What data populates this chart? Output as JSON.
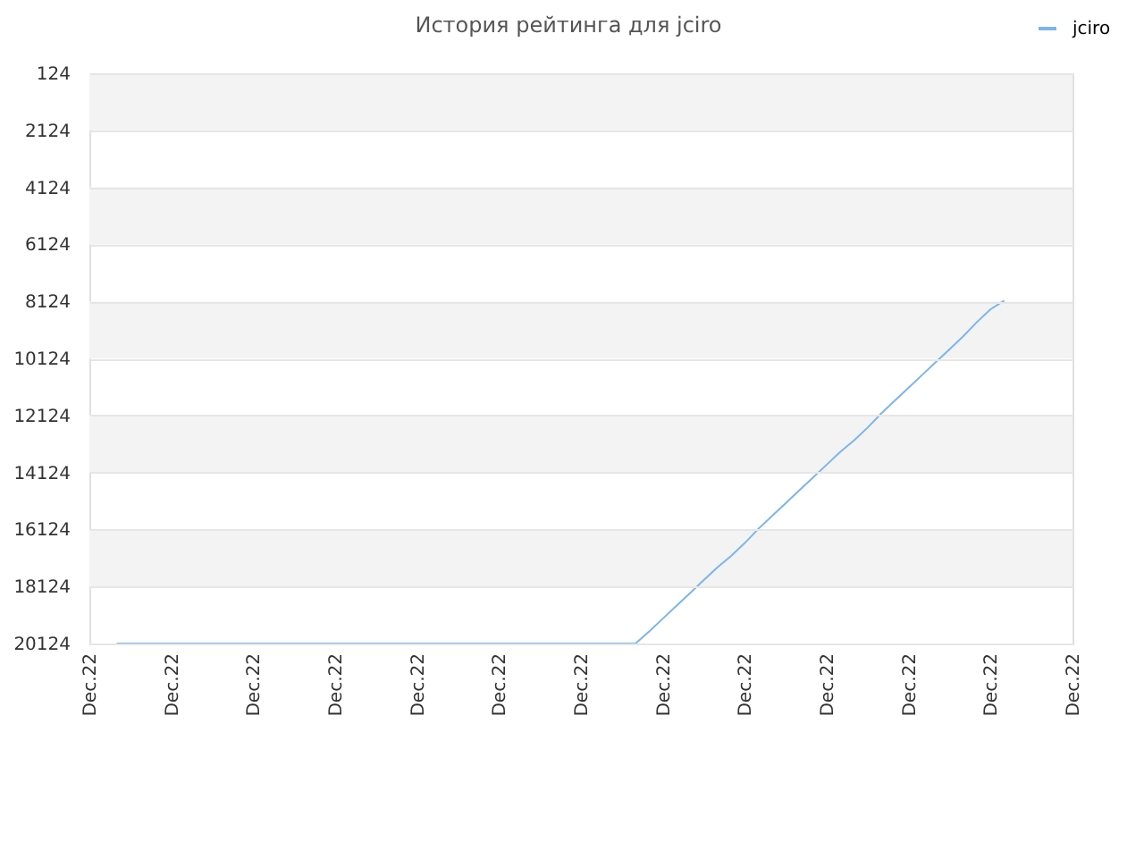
{
  "chart_data": {
    "type": "line",
    "title": "История рейтинга для jciro",
    "categories": [
      "Dec.22",
      null,
      null,
      null,
      null,
      null,
      "Dec.22",
      null,
      null,
      null,
      null,
      null,
      "Dec.22",
      null,
      null,
      null,
      null,
      null,
      "Dec.22",
      null,
      null,
      null,
      null,
      null,
      "Dec.22",
      null,
      null,
      null,
      null,
      null,
      "Dec.22",
      null,
      null,
      null,
      null,
      null,
      "Dec.22",
      null,
      null,
      null,
      null,
      null,
      "Dec.22",
      null,
      null,
      null,
      null,
      null,
      "Dec.22",
      null,
      null,
      null,
      null,
      null,
      "Dec.22",
      null,
      null,
      null,
      null,
      null,
      "Dec.22",
      null,
      null,
      null,
      null,
      null,
      "Dec.22",
      null,
      null,
      null,
      null,
      null,
      "Dec.22"
    ],
    "series": [
      {
        "name": "jciro",
        "color": "#7cb5ec",
        "values": [
          null,
          null,
          20124,
          20124,
          20124,
          20124,
          20124,
          20124,
          20124,
          20124,
          20124,
          20124,
          20124,
          20124,
          20124,
          20124,
          20124,
          20124,
          20124,
          20124,
          20124,
          20124,
          20124,
          20124,
          20124,
          20124,
          20124,
          20124,
          20124,
          20124,
          20124,
          20124,
          20124,
          20124,
          20124,
          20124,
          20124,
          20124,
          20124,
          20124,
          20124,
          19700,
          19250,
          18800,
          18350,
          17900,
          17450,
          17050,
          16600,
          16100,
          15650,
          15200,
          14750,
          14300,
          13850,
          13400,
          13000,
          12550,
          12050,
          11600,
          11150,
          10700,
          10250,
          9800,
          9350,
          8850,
          8400,
          8100,
          null,
          null,
          null,
          null,
          null
        ]
      }
    ],
    "ylim": [
      20124,
      124
    ],
    "yticks": [
      124,
      2124,
      4124,
      6124,
      8124,
      10124,
      12124,
      14124,
      16124,
      18124,
      20124
    ],
    "bands": [
      {
        "axis": "y",
        "from": 124,
        "to": 2124,
        "color": "#f3f3f3"
      },
      {
        "axis": "y",
        "from": 4124,
        "to": 6124,
        "color": "#f3f3f3"
      },
      {
        "axis": "y",
        "from": 8124,
        "to": 10124,
        "color": "#f3f3f3"
      },
      {
        "axis": "y",
        "from": 12124,
        "to": 14124,
        "color": "#f3f3f3"
      },
      {
        "axis": "y",
        "from": 16124,
        "to": 18124,
        "color": "#f3f3f3"
      }
    ],
    "grid": "y",
    "legend": "top right",
    "line_style": "solid"
  }
}
